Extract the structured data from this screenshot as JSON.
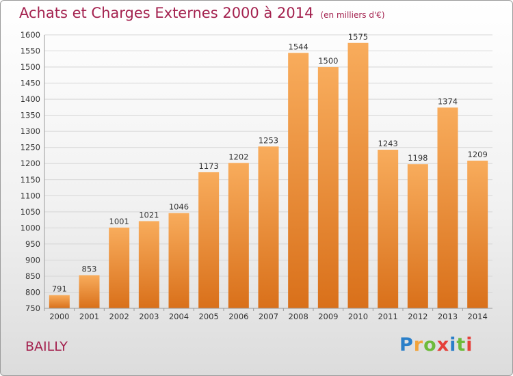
{
  "header": {
    "title": "Achats et Charges Externes 2000 à 2014",
    "unit": "(en milliers d'€)"
  },
  "commune": "BAILLY",
  "logo": {
    "text": "Proxiti"
  },
  "colors": {
    "accent": "#a4224f",
    "bar_top": "#f8ac5c",
    "bar_bottom": "#d9701a",
    "grid": "#d6d6d6"
  },
  "chart_data": {
    "type": "bar",
    "title": "Achats et Charges Externes 2000 à 2014",
    "subtitle": "(en milliers d'€)",
    "categories": [
      "2000",
      "2001",
      "2002",
      "2003",
      "2004",
      "2005",
      "2006",
      "2007",
      "2008",
      "2009",
      "2010",
      "2011",
      "2012",
      "2013",
      "2014"
    ],
    "values": [
      791,
      853,
      1001,
      1021,
      1046,
      1173,
      1202,
      1253,
      1544,
      1500,
      1575,
      1243,
      1198,
      1374,
      1209
    ],
    "ylim": [
      750,
      1600
    ],
    "yticks": [
      750,
      800,
      850,
      900,
      950,
      1000,
      1050,
      1100,
      1150,
      1200,
      1250,
      1300,
      1350,
      1400,
      1450,
      1500,
      1550,
      1600
    ],
    "grid": true,
    "xlabel": "",
    "ylabel": ""
  }
}
